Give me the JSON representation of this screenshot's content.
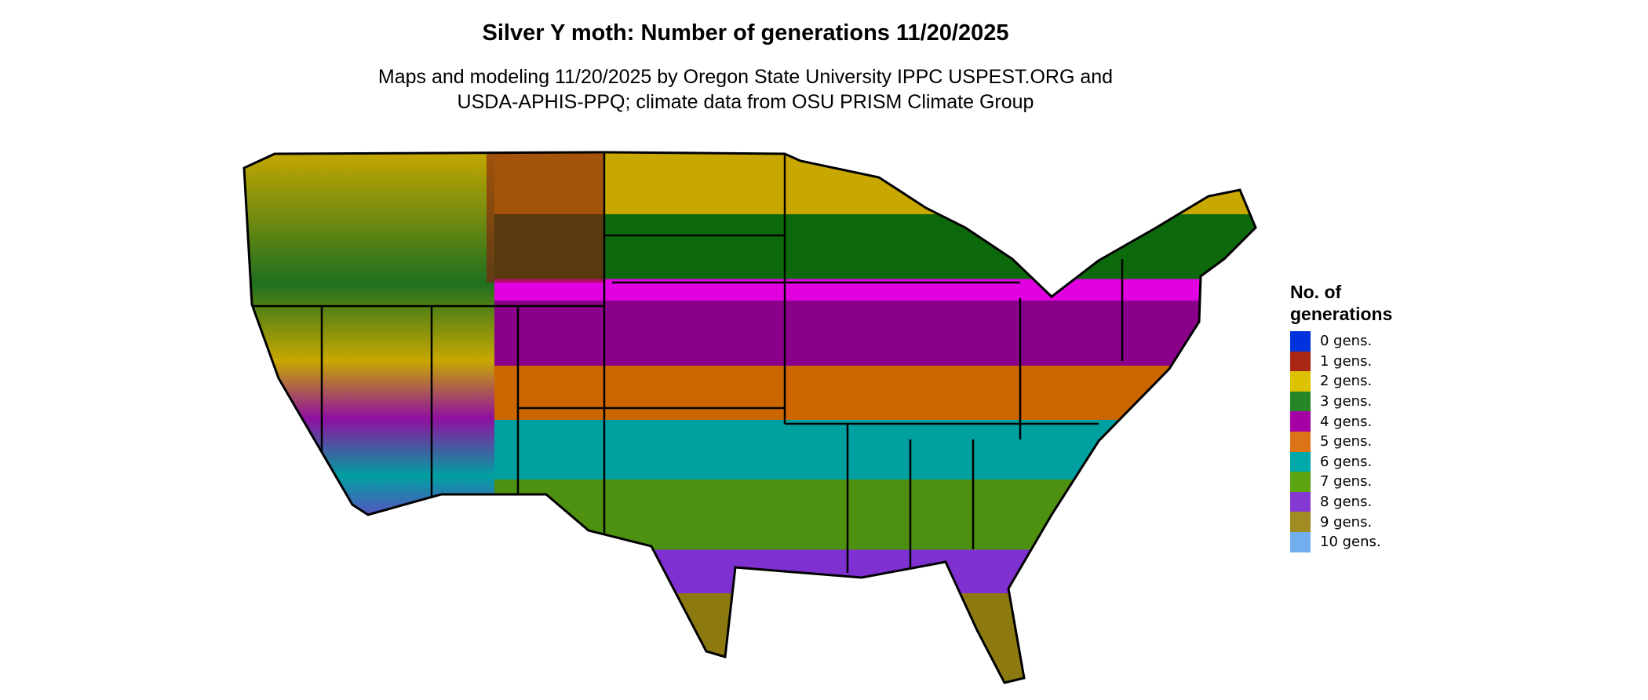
{
  "title": "Silver Y moth: Number of generations 11/20/2025",
  "subtitle_line1": "Maps and modeling 11/20/2025 by Oregon State University IPPC USPEST.ORG and",
  "subtitle_line2": "USDA-APHIS-PPQ; climate data from OSU PRISM Climate Group",
  "legend": {
    "title": "No. of generations",
    "items": [
      {
        "label": "0 gens.",
        "color": "#0033dd"
      },
      {
        "label": "1 gens.",
        "color": "#aa2715"
      },
      {
        "label": "2 gens.",
        "color": "#dcc200"
      },
      {
        "label": "3 gens.",
        "color": "#268526"
      },
      {
        "label": "4 gens.",
        "color": "#a400a4"
      },
      {
        "label": "5 gens.",
        "color": "#dd7517"
      },
      {
        "label": "6 gens.",
        "color": "#00a9a9"
      },
      {
        "label": "7 gens.",
        "color": "#5ca510"
      },
      {
        "label": "8 gens.",
        "color": "#8439d3"
      },
      {
        "label": "9 gens.",
        "color": "#a08c23"
      },
      {
        "label": "10 gens.",
        "color": "#71aeee"
      }
    ]
  }
}
